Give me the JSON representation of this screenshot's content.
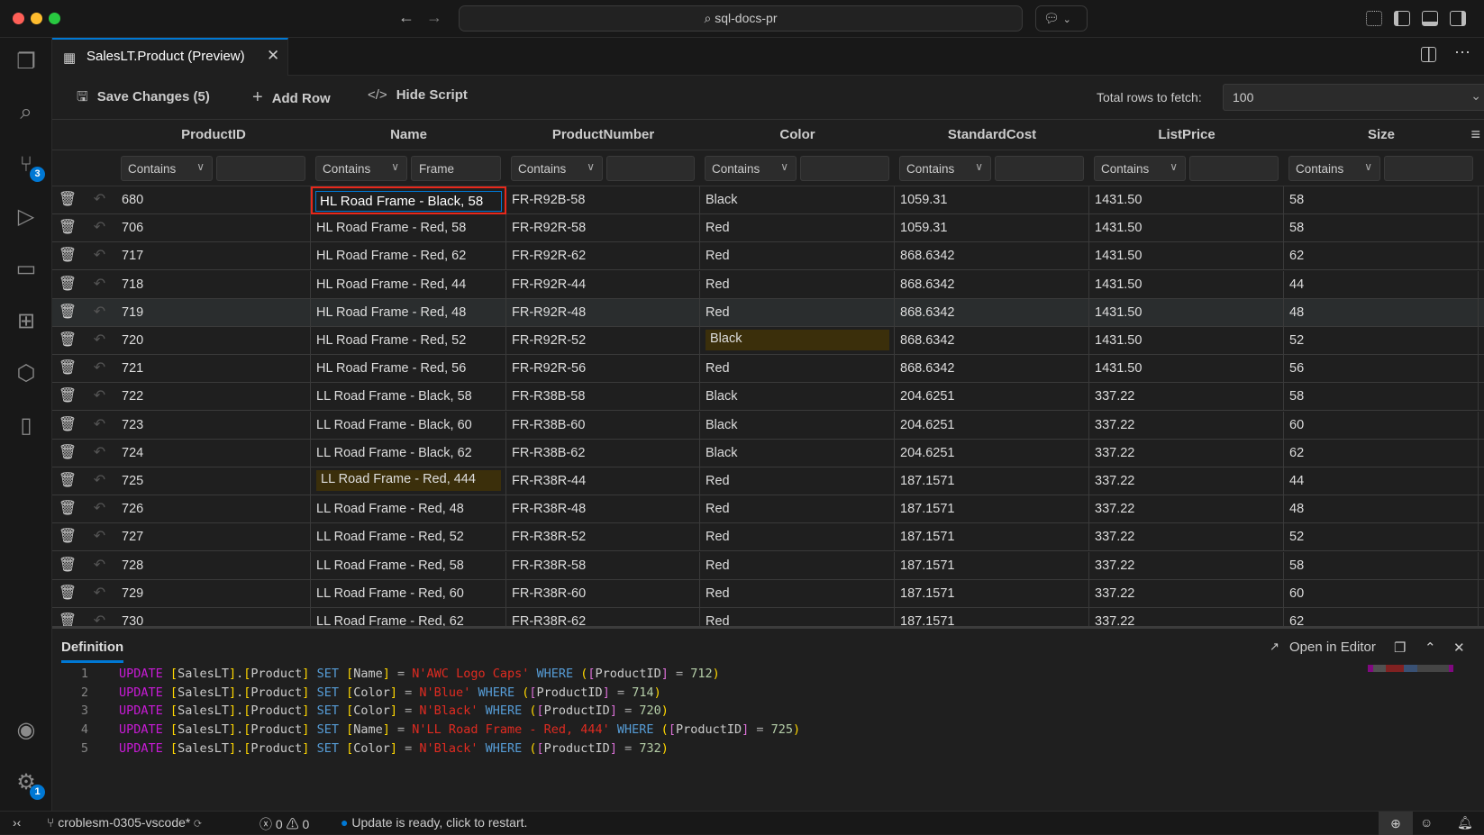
{
  "titlebar": {
    "search": "sql-docs-pr",
    "back_icon": "arrow-left-icon",
    "forward_icon": "arrow-right-icon"
  },
  "activity_bar": {
    "items": [
      {
        "name": "explorer",
        "icon": "files-icon"
      },
      {
        "name": "search",
        "icon": "search-icon"
      },
      {
        "name": "source-control",
        "icon": "source-control-icon",
        "badge": "3"
      },
      {
        "name": "run-debug",
        "icon": "debug-icon"
      },
      {
        "name": "remote-explorer",
        "icon": "remote-icon"
      },
      {
        "name": "extensions",
        "icon": "extensions-icon"
      },
      {
        "name": "sql-server",
        "icon": "database-icon"
      },
      {
        "name": "bookmarks",
        "icon": "book-icon"
      }
    ],
    "bottom": [
      {
        "name": "accounts",
        "icon": "account-icon"
      },
      {
        "name": "manage",
        "icon": "gear-icon",
        "badge": "1"
      }
    ]
  },
  "tab": {
    "title": "SalesLT.Product (Preview)"
  },
  "toolbar": {
    "save_label": "Save Changes (5)",
    "add_row_label": "Add Row",
    "hide_script_label": "Hide Script",
    "fetch_label": "Total rows to fetch:",
    "fetch_value": "100"
  },
  "grid": {
    "columns": [
      "ProductID",
      "Name",
      "ProductNumber",
      "Color",
      "StandardCost",
      "ListPrice",
      "Size"
    ],
    "filters": [
      {
        "op": "Contains",
        "value": ""
      },
      {
        "op": "Contains",
        "value": "Frame"
      },
      {
        "op": "Contains",
        "value": ""
      },
      {
        "op": "Contains",
        "value": ""
      },
      {
        "op": "Contains",
        "value": ""
      },
      {
        "op": "Contains",
        "value": ""
      },
      {
        "op": "Contains",
        "value": ""
      }
    ],
    "rows": [
      {
        "cells": [
          "680",
          "HL Road Frame - Black, 58",
          "FR-R92B-58",
          "Black",
          "1059.31",
          "1431.50",
          "58"
        ],
        "editing": 1
      },
      {
        "cells": [
          "706",
          "HL Road Frame - Red, 58",
          "FR-R92R-58",
          "Red",
          "1059.31",
          "1431.50",
          "58"
        ]
      },
      {
        "cells": [
          "717",
          "HL Road Frame - Red, 62",
          "FR-R92R-62",
          "Red",
          "868.6342",
          "1431.50",
          "62"
        ]
      },
      {
        "cells": [
          "718",
          "HL Road Frame - Red, 44",
          "FR-R92R-44",
          "Red",
          "868.6342",
          "1431.50",
          "44"
        ]
      },
      {
        "cells": [
          "719",
          "HL Road Frame - Red, 48",
          "FR-R92R-48",
          "Red",
          "868.6342",
          "1431.50",
          "48"
        ],
        "hover": true
      },
      {
        "cells": [
          "720",
          "HL Road Frame - Red, 52",
          "FR-R92R-52",
          "Black",
          "868.6342",
          "1431.50",
          "52"
        ],
        "modified": 3
      },
      {
        "cells": [
          "721",
          "HL Road Frame - Red, 56",
          "FR-R92R-56",
          "Red",
          "868.6342",
          "1431.50",
          "56"
        ]
      },
      {
        "cells": [
          "722",
          "LL Road Frame - Black, 58",
          "FR-R38B-58",
          "Black",
          "204.6251",
          "337.22",
          "58"
        ]
      },
      {
        "cells": [
          "723",
          "LL Road Frame - Black, 60",
          "FR-R38B-60",
          "Black",
          "204.6251",
          "337.22",
          "60"
        ]
      },
      {
        "cells": [
          "724",
          "LL Road Frame - Black, 62",
          "FR-R38B-62",
          "Black",
          "204.6251",
          "337.22",
          "62"
        ]
      },
      {
        "cells": [
          "725",
          "LL Road Frame - Red, 444",
          "FR-R38R-44",
          "Red",
          "187.1571",
          "337.22",
          "44"
        ],
        "modified": 1
      },
      {
        "cells": [
          "726",
          "LL Road Frame - Red, 48",
          "FR-R38R-48",
          "Red",
          "187.1571",
          "337.22",
          "48"
        ]
      },
      {
        "cells": [
          "727",
          "LL Road Frame - Red, 52",
          "FR-R38R-52",
          "Red",
          "187.1571",
          "337.22",
          "52"
        ]
      },
      {
        "cells": [
          "728",
          "LL Road Frame - Red, 58",
          "FR-R38R-58",
          "Red",
          "187.1571",
          "337.22",
          "58"
        ]
      },
      {
        "cells": [
          "729",
          "LL Road Frame - Red, 60",
          "FR-R38R-60",
          "Red",
          "187.1571",
          "337.22",
          "60"
        ]
      },
      {
        "cells": [
          "730",
          "LL Road Frame - Red, 62",
          "FR-R38R-62",
          "Red",
          "187.1571",
          "337.22",
          "62"
        ]
      }
    ]
  },
  "panel": {
    "tab": "Definition",
    "open_in_editor": "Open in Editor",
    "lines": [
      [
        [
          "UPDATE",
          "kw"
        ],
        [
          " "
        ],
        [
          "[",
          "br"
        ],
        [
          "SalesLT",
          "id"
        ],
        [
          "]",
          "br"
        ],
        [
          "."
        ],
        [
          "[",
          "br"
        ],
        [
          "Product",
          "id"
        ],
        [
          "]",
          "br"
        ],
        [
          " "
        ],
        [
          "SET",
          "kw2"
        ],
        [
          " "
        ],
        [
          "[",
          "br"
        ],
        [
          "Name",
          "id"
        ],
        [
          "]",
          "br"
        ],
        [
          " = ",
          "op"
        ],
        [
          "N'AWC Logo Caps'",
          "str"
        ],
        [
          " "
        ],
        [
          "WHERE",
          "kw2"
        ],
        [
          " "
        ],
        [
          "(",
          "br"
        ],
        [
          "[",
          "br2"
        ],
        [
          "ProductID",
          "id"
        ],
        [
          "]",
          "br2"
        ],
        [
          " = ",
          "op"
        ],
        [
          "712",
          "num"
        ],
        [
          ")",
          "br"
        ]
      ],
      [
        [
          "UPDATE",
          "kw"
        ],
        [
          " "
        ],
        [
          "[",
          "br"
        ],
        [
          "SalesLT",
          "id"
        ],
        [
          "]",
          "br"
        ],
        [
          "."
        ],
        [
          "[",
          "br"
        ],
        [
          "Product",
          "id"
        ],
        [
          "]",
          "br"
        ],
        [
          " "
        ],
        [
          "SET",
          "kw2"
        ],
        [
          " "
        ],
        [
          "[",
          "br"
        ],
        [
          "Color",
          "id"
        ],
        [
          "]",
          "br"
        ],
        [
          " = ",
          "op"
        ],
        [
          "N'Blue'",
          "str"
        ],
        [
          " "
        ],
        [
          "WHERE",
          "kw2"
        ],
        [
          " "
        ],
        [
          "(",
          "br"
        ],
        [
          "[",
          "br2"
        ],
        [
          "ProductID",
          "id"
        ],
        [
          "]",
          "br2"
        ],
        [
          " = ",
          "op"
        ],
        [
          "714",
          "num"
        ],
        [
          ")",
          "br"
        ]
      ],
      [
        [
          "UPDATE",
          "kw"
        ],
        [
          " "
        ],
        [
          "[",
          "br"
        ],
        [
          "SalesLT",
          "id"
        ],
        [
          "]",
          "br"
        ],
        [
          "."
        ],
        [
          "[",
          "br"
        ],
        [
          "Product",
          "id"
        ],
        [
          "]",
          "br"
        ],
        [
          " "
        ],
        [
          "SET",
          "kw2"
        ],
        [
          " "
        ],
        [
          "[",
          "br"
        ],
        [
          "Color",
          "id"
        ],
        [
          "]",
          "br"
        ],
        [
          " = ",
          "op"
        ],
        [
          "N'Black'",
          "str"
        ],
        [
          " "
        ],
        [
          "WHERE",
          "kw2"
        ],
        [
          " "
        ],
        [
          "(",
          "br"
        ],
        [
          "[",
          "br2"
        ],
        [
          "ProductID",
          "id"
        ],
        [
          "]",
          "br2"
        ],
        [
          " = ",
          "op"
        ],
        [
          "720",
          "num"
        ],
        [
          ")",
          "br"
        ]
      ],
      [
        [
          "UPDATE",
          "kw"
        ],
        [
          " "
        ],
        [
          "[",
          "br"
        ],
        [
          "SalesLT",
          "id"
        ],
        [
          "]",
          "br"
        ],
        [
          "."
        ],
        [
          "[",
          "br"
        ],
        [
          "Product",
          "id"
        ],
        [
          "]",
          "br"
        ],
        [
          " "
        ],
        [
          "SET",
          "kw2"
        ],
        [
          " "
        ],
        [
          "[",
          "br"
        ],
        [
          "Name",
          "id"
        ],
        [
          "]",
          "br"
        ],
        [
          " = ",
          "op"
        ],
        [
          "N'LL Road Frame - Red, 444'",
          "str"
        ],
        [
          " "
        ],
        [
          "WHERE",
          "kw2"
        ],
        [
          " "
        ],
        [
          "(",
          "br"
        ],
        [
          "[",
          "br2"
        ],
        [
          "ProductID",
          "id"
        ],
        [
          "]",
          "br2"
        ],
        [
          " = ",
          "op"
        ],
        [
          "725",
          "num"
        ],
        [
          ")",
          "br"
        ]
      ],
      [
        [
          "UPDATE",
          "kw"
        ],
        [
          " "
        ],
        [
          "[",
          "br"
        ],
        [
          "SalesLT",
          "id"
        ],
        [
          "]",
          "br"
        ],
        [
          "."
        ],
        [
          "[",
          "br"
        ],
        [
          "Product",
          "id"
        ],
        [
          "]",
          "br"
        ],
        [
          " "
        ],
        [
          "SET",
          "kw2"
        ],
        [
          " "
        ],
        [
          "[",
          "br"
        ],
        [
          "Color",
          "id"
        ],
        [
          "]",
          "br"
        ],
        [
          " = ",
          "op"
        ],
        [
          "N'Black'",
          "str"
        ],
        [
          " "
        ],
        [
          "WHERE",
          "kw2"
        ],
        [
          " "
        ],
        [
          "(",
          "br"
        ],
        [
          "[",
          "br2"
        ],
        [
          "ProductID",
          "id"
        ],
        [
          "]",
          "br2"
        ],
        [
          " = ",
          "op"
        ],
        [
          "732",
          "num"
        ],
        [
          ")",
          "br"
        ]
      ]
    ]
  },
  "status": {
    "branch": "croblesm-0305-vscode*",
    "errors": "0",
    "warnings": "0",
    "update": "Update is ready, click to restart."
  },
  "colors": {
    "accent": "#0078d4",
    "modified_cell": "#3b2f0b",
    "edit_outline": "#e8281b"
  }
}
